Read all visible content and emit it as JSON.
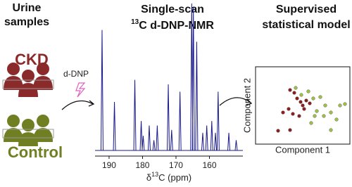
{
  "headings": {
    "samples": [
      "Urine",
      "samples"
    ],
    "nmr": {
      "line1": "Single-scan",
      "sup": "13",
      "line2": "C d-DNP-NMR"
    },
    "model": [
      "Supervised",
      "statistical model"
    ]
  },
  "groups": {
    "ckd": "CKD",
    "control": "Control"
  },
  "step": "d-DNP",
  "spectrum": {
    "xlabel": {
      "prefix": "δ",
      "sup": "13",
      "rest": "C (ppm)"
    },
    "xlim": [
      194.2,
      150
    ],
    "xticks": [
      190,
      180,
      170,
      160
    ],
    "color": "#1a1a8c",
    "peaks": [
      {
        "ppm": 192.1,
        "intensity": 82
      },
      {
        "ppm": 188.4,
        "intensity": 33
      },
      {
        "ppm": 182.3,
        "intensity": 48
      },
      {
        "ppm": 180.4,
        "intensity": 20
      },
      {
        "ppm": 179.8,
        "intensity": 10
      },
      {
        "ppm": 178.0,
        "intensity": 17
      },
      {
        "ppm": 176.6,
        "intensity": 7
      },
      {
        "ppm": 175.6,
        "intensity": 17
      },
      {
        "ppm": 172.3,
        "intensity": 45
      },
      {
        "ppm": 171.3,
        "intensity": 14
      },
      {
        "ppm": 168.8,
        "intensity": 40
      },
      {
        "ppm": 165.3,
        "intensity": 100
      },
      {
        "ppm": 164.8,
        "intensity": 97
      },
      {
        "ppm": 163.8,
        "intensity": 74
      },
      {
        "ppm": 162.0,
        "intensity": 12
      },
      {
        "ppm": 160.8,
        "intensity": 17
      },
      {
        "ppm": 159.3,
        "intensity": 20
      },
      {
        "ppm": 158.2,
        "intensity": 12
      },
      {
        "ppm": 157.4,
        "intensity": 40
      },
      {
        "ppm": 154.2,
        "intensity": 12
      },
      {
        "ppm": 152.0,
        "intensity": 7
      }
    ]
  },
  "scatter": {
    "xlabel": "Component 1",
    "ylabel": "Component 2",
    "series": [
      {
        "color": "#8b1f1f",
        "x": [
          35.2,
          40,
          43.2,
          47.2,
          49.6,
          53.6,
          33.6,
          27.2,
          38.4,
          45.6,
          57.6,
          21.6,
          35.2,
          51.2
        ],
        "y": [
          72,
          68,
          60,
          55,
          50,
          57,
          45,
          40,
          38,
          35,
          53,
          14,
          15,
          45
        ]
      },
      {
        "color": "#9cbf48",
        "x": [
          41.6,
          48,
          56,
          61.6,
          69.6,
          75.2,
          81.6,
          88,
          92,
          73.6,
          65.6,
          59.2,
          81.6,
          63.2,
          97.6
        ],
        "y": [
          75,
          65,
          70,
          60,
          62,
          50,
          40,
          30,
          50,
          35,
          42,
          25,
          15,
          35,
          52
        ]
      }
    ]
  }
}
